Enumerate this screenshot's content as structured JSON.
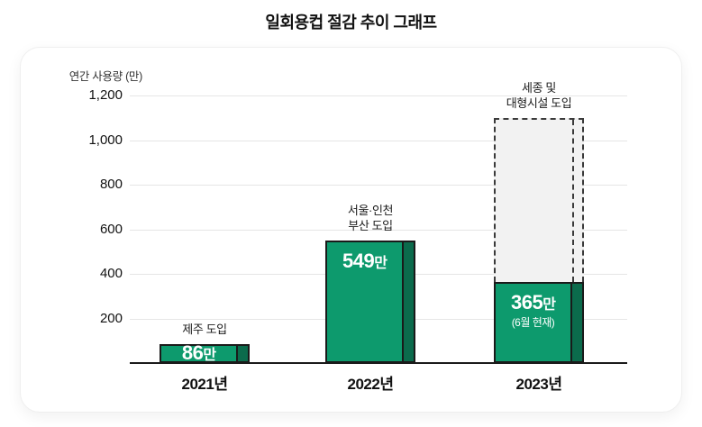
{
  "page": {
    "title": "일회용컵 절감 추이 그래프"
  },
  "chart_data": {
    "type": "bar",
    "title": "일회용컵 절감 추이 그래프",
    "ylabel": "연간 사용량 (만)",
    "xlabel": "",
    "ylim": [
      0,
      1200
    ],
    "grid": true,
    "yticks": {
      "values": [
        1200,
        1000,
        800,
        600,
        400,
        200
      ],
      "labels": [
        "1,200",
        "1,000",
        "800",
        "600",
        "400",
        "200"
      ]
    },
    "categories": [
      "2021년",
      "2022년",
      "2023년"
    ],
    "values": [
      86,
      549,
      365
    ],
    "bars": [
      {
        "category": "2021년",
        "value": 86,
        "value_label": "86",
        "unit": "만",
        "annotation_line1": "제주 도입",
        "annotation_line2": ""
      },
      {
        "category": "2022년",
        "value": 549,
        "value_label": "549",
        "unit": "만",
        "annotation_line1": "서울·인천",
        "annotation_line2": "부산 도입"
      },
      {
        "category": "2023년",
        "value": 365,
        "value_label": "365",
        "unit": "만",
        "sub_label": "(6월 현재)",
        "projected_value": 1100,
        "annotation_line1": "세종 및",
        "annotation_line2": "대형시설 도입"
      }
    ],
    "colors": {
      "bar_fill": "#0d9a6d",
      "bar_side": "#0b6b4c",
      "bar_outline": "#1a1a1a",
      "projected_fill": "#f2f2f2",
      "projected_border": "#3a3a3a",
      "gridline": "#e6e6e6",
      "axis": "#1a1a1a",
      "text": "#111111",
      "value_text": "#ffffff"
    }
  }
}
